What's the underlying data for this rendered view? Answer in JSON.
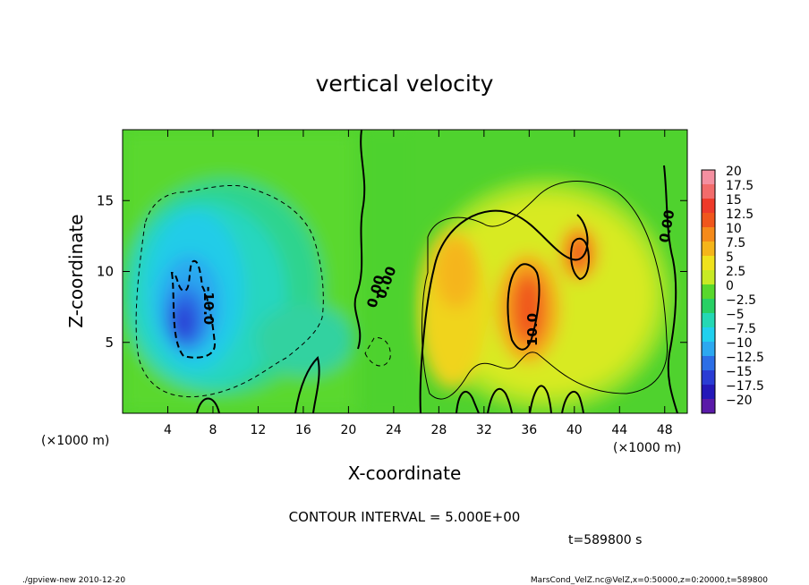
{
  "chart_data": {
    "type": "heatmap",
    "title": "vertical velocity",
    "xlabel": "X-coordinate",
    "ylabel": "Z-coordinate",
    "x_unit_note": "(×1000 m)",
    "y_unit_note": "(×1000 m)",
    "xlim": [
      0,
      50
    ],
    "ylim": [
      0,
      20
    ],
    "x_ticks": [
      4,
      8,
      12,
      16,
      20,
      24,
      28,
      32,
      36,
      40,
      44,
      48
    ],
    "y_ticks": [
      5,
      10,
      15
    ],
    "colorbar": {
      "levels": [
        "20",
        "17.5",
        "15",
        "12.5",
        "10",
        "7.5",
        "5",
        "2.5",
        "0",
        "−2.5",
        "−5",
        "−7.5",
        "−10",
        "−12.5",
        "−15",
        "−17.5",
        "−20"
      ],
      "colors": [
        "#f48fa0",
        "#f26b6b",
        "#ee3a2a",
        "#f0561c",
        "#f58a1a",
        "#f5b51a",
        "#f0e21c",
        "#c8ea24",
        "#58d82c",
        "#28d064",
        "#24d8b4",
        "#20d0ee",
        "#2ca8f0",
        "#2c6ee6",
        "#2a3cd4",
        "#2418b8",
        "#5a1aa8"
      ]
    },
    "contour_labels": [
      "-10.0",
      "0.00",
      "0.00",
      "10.0",
      "0.00"
    ],
    "features": [
      {
        "kind": "downdraft",
        "x": 6,
        "z": 8,
        "value": -15
      },
      {
        "kind": "updraft",
        "x": 35,
        "z": 8,
        "value": 12.5
      },
      {
        "kind": "updraft",
        "x": 40.5,
        "z": 11,
        "value": 11
      },
      {
        "kind": "updraft",
        "x": 29.5,
        "z": 10,
        "value": 6
      }
    ]
  },
  "footer": {
    "contour_interval": "CONTOUR INTERVAL = 5.000E+00",
    "time": "t=589800  s",
    "program": "./gpview-new   2010-12-20",
    "source": "MarsCond_VelZ.nc@VelZ,x=0:50000,z=0:20000,t=589800"
  }
}
